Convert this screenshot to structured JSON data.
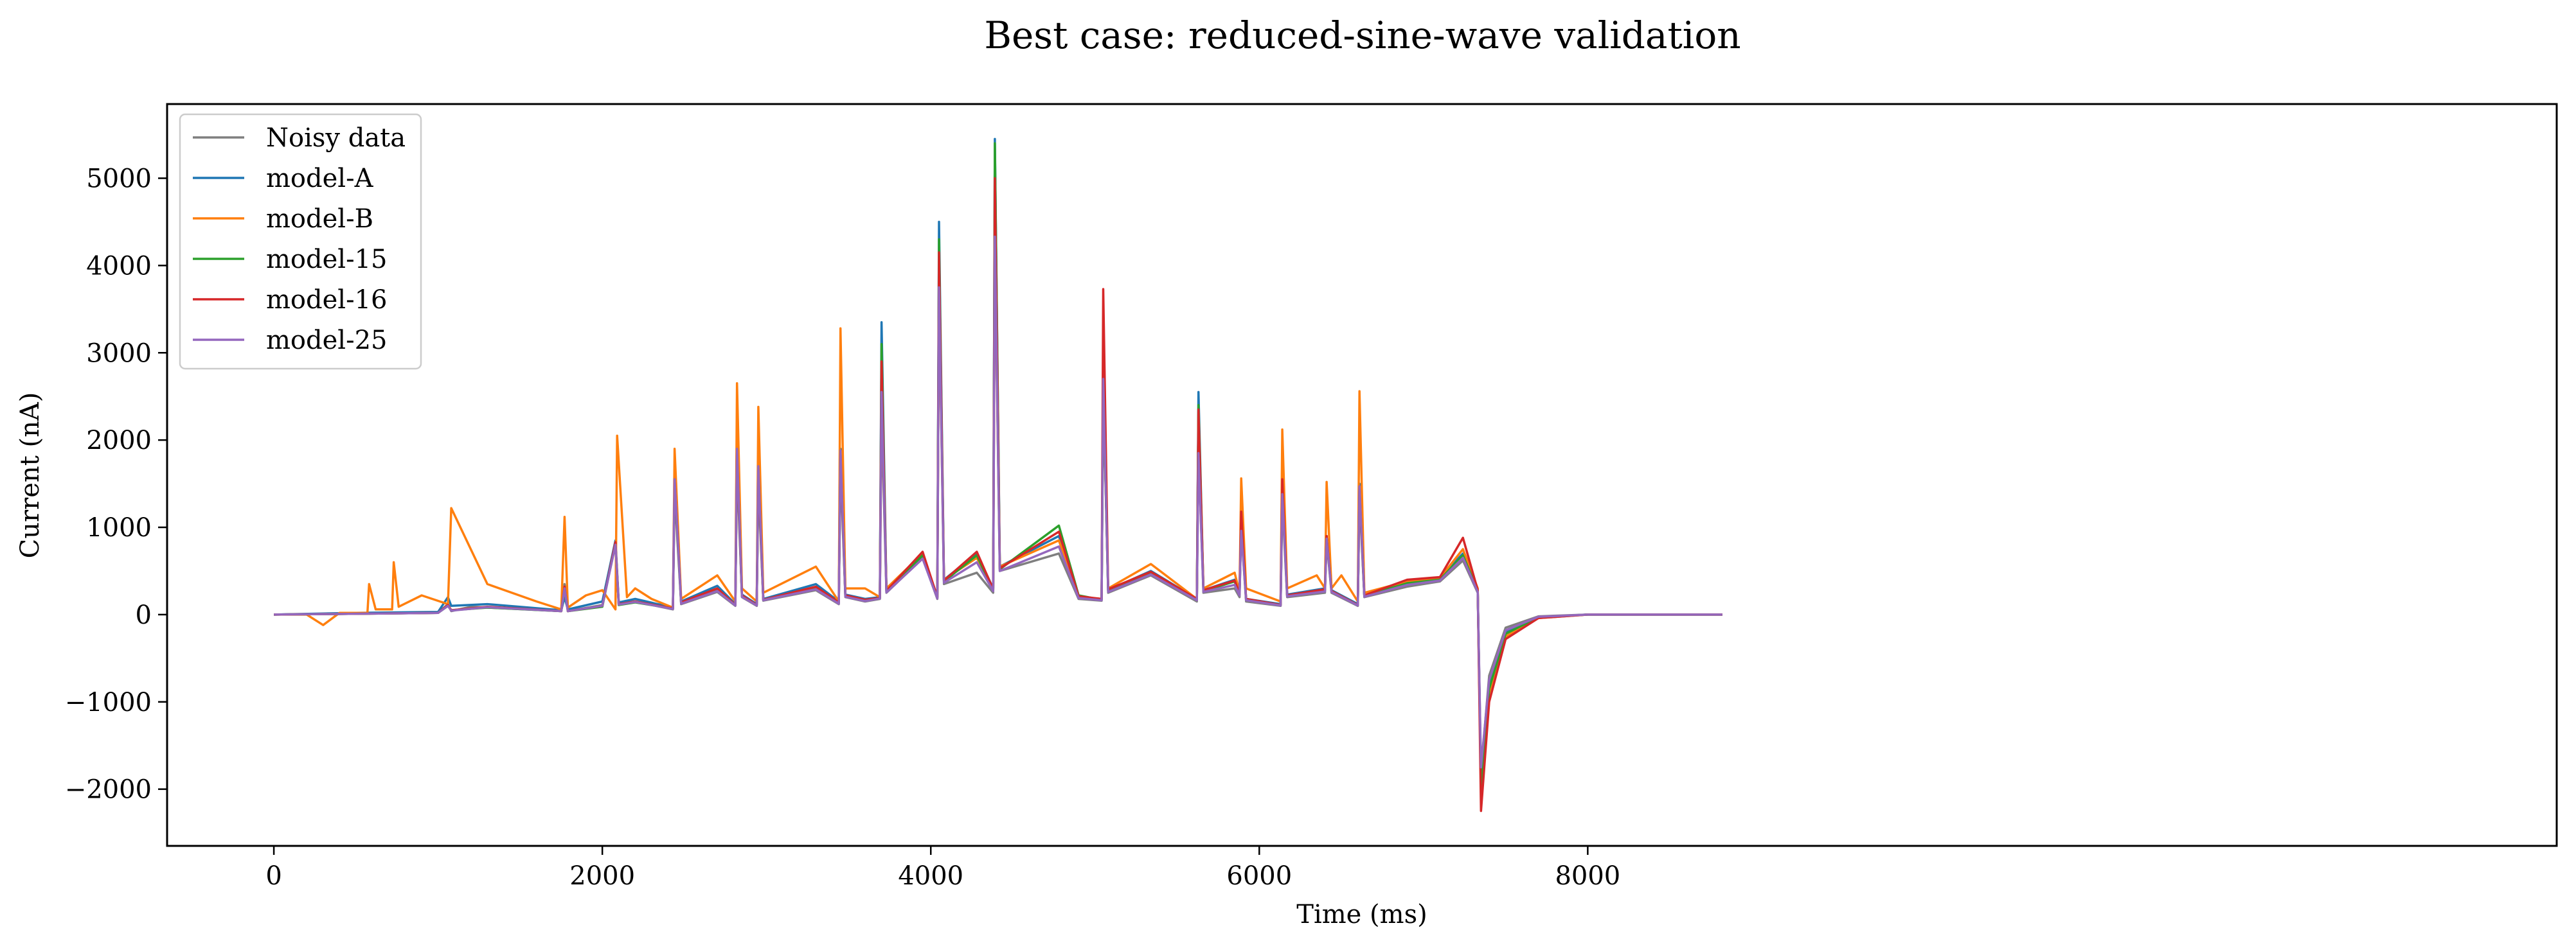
{
  "chart_data": {
    "type": "line",
    "title": "Best case: reduced-sine-wave validation",
    "xlabel": "Time (ms)",
    "ylabel": "Current (nA)",
    "xlim": [
      -650,
      13900
    ],
    "ylim": [
      -2650,
      5850
    ],
    "xticks": [
      0,
      2000,
      4000,
      6000,
      8000
    ],
    "yticks": [
      -2000,
      -1000,
      0,
      1000,
      2000,
      3000,
      4000,
      5000
    ],
    "grid": false,
    "legend_position": "top-left",
    "series": [
      {
        "name": "Noisy data",
        "color": "#7f7f7f",
        "x": [
          0,
          500,
          1000,
          1060,
          1080,
          1200,
          1750,
          1770,
          1790,
          2000,
          2080,
          2100,
          2200,
          2430,
          2440,
          2480,
          2700,
          2810,
          2820,
          2850,
          2940,
          2950,
          2980,
          3300,
          3440,
          3450,
          3480,
          3600,
          3690,
          3700,
          3730,
          3950,
          4040,
          4050,
          4080,
          4280,
          4380,
          4390,
          4420,
          4780,
          4900,
          5040,
          5050,
          5080,
          5340,
          5620,
          5630,
          5660,
          5850,
          5880,
          5890,
          5920,
          6130,
          6140,
          6170,
          6400,
          6410,
          6440,
          6600,
          6610,
          6640,
          6900,
          7100,
          7240,
          7330,
          7350,
          7400,
          7500,
          7700,
          8000,
          8400,
          8820
        ],
        "y": [
          0,
          10,
          20,
          120,
          40,
          90,
          40,
          350,
          40,
          110,
          800,
          120,
          150,
          60,
          1400,
          120,
          260,
          100,
          1700,
          200,
          100,
          1500,
          160,
          280,
          120,
          1700,
          200,
          150,
          180,
          2300,
          250,
          650,
          180,
          3700,
          350,
          480,
          250,
          4200,
          500,
          700,
          180,
          160,
          2600,
          250,
          450,
          150,
          1900,
          250,
          300,
          200,
          1000,
          150,
          100,
          1300,
          200,
          250,
          850,
          250,
          100,
          1350,
          200,
          320,
          380,
          620,
          250,
          -1800,
          -700,
          -150,
          -20,
          0,
          0,
          0
        ]
      },
      {
        "name": "model-A",
        "color": "#1f77b4",
        "x": [
          0,
          500,
          1000,
          1060,
          1080,
          1300,
          1750,
          1770,
          1790,
          2000,
          2080,
          2100,
          2200,
          2430,
          2440,
          2480,
          2700,
          2810,
          2820,
          2850,
          2940,
          2950,
          2980,
          3300,
          3440,
          3450,
          3480,
          3600,
          3690,
          3700,
          3730,
          3950,
          4040,
          4050,
          4080,
          4280,
          4380,
          4390,
          4420,
          4780,
          4900,
          5040,
          5050,
          5080,
          5340,
          5620,
          5630,
          5660,
          5850,
          5880,
          5890,
          5920,
          6130,
          6140,
          6170,
          6400,
          6410,
          6440,
          6600,
          6610,
          6640,
          6900,
          7100,
          7240,
          7330,
          7350,
          7400,
          7500,
          7700,
          8000,
          8400,
          8820
        ],
        "y": [
          0,
          20,
          30,
          200,
          100,
          120,
          50,
          200,
          60,
          150,
          850,
          140,
          180,
          80,
          1600,
          150,
          330,
          120,
          1900,
          230,
          120,
          1700,
          180,
          350,
          150,
          1900,
          230,
          180,
          200,
          3350,
          280,
          700,
          200,
          4500,
          400,
          700,
          300,
          5450,
          550,
          900,
          200,
          180,
          2700,
          280,
          500,
          180,
          2550,
          280,
          400,
          250,
          1100,
          180,
          120,
          1500,
          230,
          300,
          900,
          280,
          120,
          1500,
          220,
          380,
          420,
          700,
          280,
          -1900,
          -800,
          -200,
          -30,
          0,
          0,
          0
        ]
      },
      {
        "name": "model-B",
        "color": "#ff7f0e",
        "x": [
          0,
          200,
          300,
          400,
          570,
          580,
          620,
          720,
          730,
          760,
          900,
          1060,
          1080,
          1300,
          1600,
          1750,
          1770,
          1790,
          1900,
          2000,
          2080,
          2090,
          2150,
          2200,
          2300,
          2430,
          2440,
          2480,
          2700,
          2810,
          2820,
          2850,
          2940,
          2950,
          2980,
          3300,
          3440,
          3450,
          3480,
          3600,
          3690,
          3700,
          3730,
          3950,
          4040,
          4050,
          4080,
          4280,
          4380,
          4390,
          4420,
          4780,
          4900,
          5040,
          5050,
          5080,
          5340,
          5620,
          5630,
          5660,
          5850,
          5880,
          5890,
          5920,
          6130,
          6140,
          6170,
          6350,
          6400,
          6410,
          6440,
          6500,
          6600,
          6610,
          6640,
          6900,
          7100,
          7240,
          7330,
          7350,
          7400,
          7500,
          7700,
          8000,
          8400,
          8820
        ],
        "y": [
          0,
          0,
          -120,
          20,
          20,
          350,
          60,
          60,
          600,
          90,
          220,
          120,
          1220,
          350,
          150,
          60,
          1120,
          80,
          220,
          280,
          60,
          2050,
          200,
          300,
          180,
          80,
          1900,
          180,
          450,
          150,
          2650,
          300,
          150,
          2380,
          250,
          550,
          150,
          3280,
          300,
          300,
          200,
          2550,
          300,
          700,
          200,
          3750,
          400,
          650,
          300,
          4300,
          550,
          850,
          200,
          180,
          2700,
          300,
          580,
          180,
          2350,
          300,
          480,
          250,
          1560,
          300,
          150,
          2120,
          300,
          450,
          300,
          1520,
          300,
          450,
          150,
          2560,
          250,
          380,
          420,
          750,
          300,
          -2000,
          -900,
          -250,
          -40,
          0,
          0,
          0
        ]
      },
      {
        "name": "model-15",
        "color": "#2ca02c",
        "x": [
          0,
          500,
          1000,
          1060,
          1080,
          1300,
          1750,
          1770,
          1790,
          2000,
          2080,
          2100,
          2200,
          2430,
          2440,
          2480,
          2700,
          2810,
          2820,
          2850,
          2940,
          2950,
          2980,
          3300,
          3440,
          3450,
          3480,
          3600,
          3690,
          3700,
          3730,
          3950,
          4040,
          4050,
          4080,
          4280,
          4380,
          4390,
          4420,
          4780,
          4900,
          5040,
          5050,
          5080,
          5340,
          5620,
          5630,
          5660,
          5850,
          5880,
          5890,
          5920,
          6130,
          6140,
          6170,
          6400,
          6410,
          6440,
          6600,
          6610,
          6640,
          6900,
          7100,
          7240,
          7330,
          7350,
          7400,
          7500,
          7700,
          8000,
          8400,
          8820
        ],
        "y": [
          0,
          10,
          20,
          100,
          50,
          80,
          40,
          300,
          40,
          90,
          820,
          110,
          140,
          70,
          1500,
          130,
          280,
          110,
          1800,
          210,
          110,
          1600,
          170,
          300,
          130,
          1800,
          210,
          160,
          190,
          3100,
          260,
          680,
          190,
          4300,
          380,
          680,
          280,
          5400,
          520,
          1020,
          220,
          170,
          2650,
          270,
          480,
          170,
          2400,
          270,
          380,
          230,
          1050,
          170,
          110,
          1400,
          220,
          280,
          880,
          270,
          110,
          1420,
          210,
          360,
          400,
          680,
          270,
          -1950,
          -850,
          -220,
          -30,
          0,
          0,
          0
        ]
      },
      {
        "name": "model-16",
        "color": "#d62728",
        "x": [
          0,
          500,
          1000,
          1060,
          1080,
          1300,
          1750,
          1770,
          1790,
          2000,
          2080,
          2100,
          2200,
          2430,
          2440,
          2480,
          2700,
          2810,
          2820,
          2850,
          2940,
          2950,
          2980,
          3300,
          3440,
          3450,
          3480,
          3600,
          3690,
          3700,
          3730,
          3950,
          4040,
          4050,
          4080,
          4280,
          4380,
          4390,
          4420,
          4780,
          4900,
          5040,
          5050,
          5080,
          5340,
          5620,
          5630,
          5660,
          5850,
          5880,
          5890,
          5920,
          6130,
          6140,
          6170,
          6400,
          6410,
          6440,
          6600,
          6610,
          6640,
          6900,
          7100,
          7240,
          7330,
          7350,
          7400,
          7500,
          7700,
          8000,
          8400,
          8820
        ],
        "y": [
          0,
          10,
          20,
          110,
          50,
          90,
          40,
          320,
          40,
          100,
          830,
          120,
          150,
          70,
          1550,
          140,
          300,
          110,
          1850,
          220,
          110,
          1650,
          170,
          320,
          140,
          1850,
          220,
          170,
          190,
          2900,
          270,
          720,
          200,
          4150,
          390,
          720,
          290,
          5000,
          530,
          950,
          210,
          180,
          3730,
          290,
          490,
          180,
          2350,
          280,
          390,
          240,
          1180,
          180,
          110,
          1550,
          220,
          290,
          900,
          270,
          110,
          1450,
          220,
          400,
          430,
          880,
          280,
          -2250,
          -1000,
          -280,
          -40,
          0,
          0,
          0
        ]
      },
      {
        "name": "model-25",
        "color": "#9467bd",
        "x": [
          0,
          500,
          1000,
          1060,
          1080,
          1300,
          1750,
          1770,
          1790,
          2000,
          2080,
          2100,
          2200,
          2430,
          2440,
          2480,
          2700,
          2810,
          2820,
          2850,
          2940,
          2950,
          2980,
          3300,
          3440,
          3450,
          3480,
          3600,
          3690,
          3700,
          3730,
          3950,
          4040,
          4050,
          4080,
          4280,
          4380,
          4390,
          4420,
          4780,
          4900,
          5040,
          5050,
          5080,
          5340,
          5620,
          5630,
          5660,
          5850,
          5880,
          5890,
          5920,
          6130,
          6140,
          6170,
          6400,
          6410,
          6440,
          6600,
          6610,
          6640,
          6900,
          7100,
          7240,
          7330,
          7350,
          7400,
          7500,
          7700,
          8000,
          8400,
          8820
        ],
        "y": [
          0,
          10,
          20,
          100,
          45,
          85,
          40,
          300,
          40,
          100,
          800,
          115,
          145,
          65,
          1550,
          125,
          270,
          105,
          1900,
          205,
          105,
          1700,
          165,
          290,
          125,
          1880,
          205,
          155,
          185,
          2550,
          255,
          640,
          185,
          3750,
          365,
          600,
          270,
          4330,
          500,
          780,
          190,
          165,
          2700,
          260,
          460,
          165,
          1850,
          260,
          340,
          220,
          960,
          165,
          105,
          1380,
          210,
          265,
          870,
          260,
          105,
          1470,
          205,
          340,
          390,
          650,
          260,
          -1750,
          -750,
          -180,
          -25,
          0,
          0,
          0
        ]
      }
    ]
  }
}
